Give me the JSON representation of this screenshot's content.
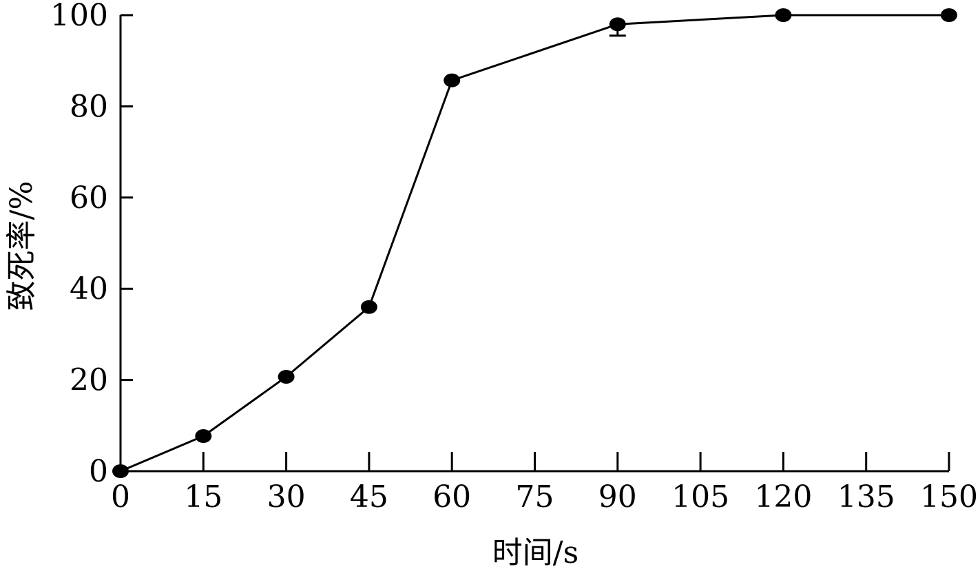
{
  "chart_data": {
    "type": "line",
    "xlabel": "时间/s",
    "ylabel": "致死率/%",
    "x": [
      0,
      15,
      30,
      45,
      60,
      90,
      120,
      150
    ],
    "series": [
      {
        "values": [
          0,
          7.7,
          20.7,
          36,
          85.7,
          98,
          100,
          100
        ],
        "error": [
          0,
          0,
          0,
          0,
          0,
          2.5,
          0,
          0
        ]
      }
    ],
    "xticks": [
      "0",
      "15",
      "30",
      "45",
      "60",
      "75",
      "90",
      "105",
      "120",
      "135",
      "150"
    ],
    "yticks": [
      "0",
      "20",
      "40",
      "60",
      "80",
      "100"
    ],
    "xlim": [
      0,
      150
    ],
    "ylim": [
      0,
      100
    ],
    "grid": false,
    "colors": {
      "line": "#000000",
      "marker": "#000000"
    }
  }
}
